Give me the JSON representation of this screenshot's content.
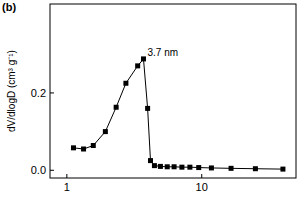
{
  "chart_data": {
    "type": "line",
    "title": "(b)",
    "y_label": "dV/dlogD (cm³ g⁻¹)",
    "x": [
      1.12,
      1.33,
      1.57,
      1.93,
      2.32,
      2.74,
      3.35,
      3.7,
      3.97,
      4.17,
      4.46,
      4.94,
      5.55,
      6.24,
      7.13,
      8.17,
      9.5,
      11.8,
      16.5,
      25,
      40
    ],
    "values": [
      0.058,
      0.055,
      0.064,
      0.1,
      0.163,
      0.225,
      0.27,
      0.288,
      0.16,
      0.025,
      0.012,
      0.01,
      0.009,
      0.009,
      0.008,
      0.008,
      0.007,
      0.006,
      0.005,
      0.004,
      0.003
    ],
    "color": "#000000",
    "marker": "square",
    "line_style": "solid",
    "log": "x",
    "grid": false,
    "xlim": [
      0.75,
      50
    ],
    "xticks": [
      1,
      10
    ],
    "ylim": [
      -0.02,
      0.43
    ],
    "yticks": [
      {
        "value": 0,
        "label": "0.0"
      },
      {
        "value": 0.2,
        "label": "0.2"
      }
    ],
    "annotations": [
      {
        "text": "3.7 nm",
        "x": 3.7,
        "y": 0.288
      }
    ]
  }
}
